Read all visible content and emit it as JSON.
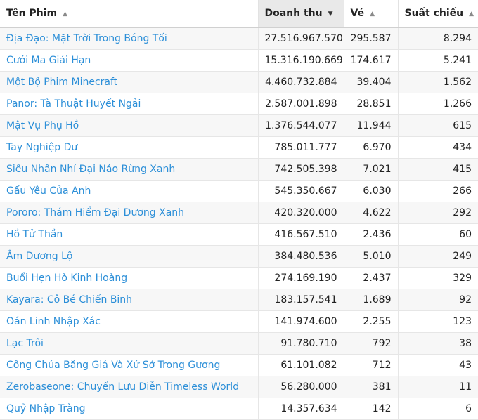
{
  "columns": [
    {
      "label": "Tên Phim",
      "arrow": "▲"
    },
    {
      "label": "Doanh thu",
      "arrow": "▼"
    },
    {
      "label": "Vé",
      "arrow": "▲"
    },
    {
      "label": "Suất chiếu",
      "arrow": "▲"
    }
  ],
  "rows": [
    {
      "title": "Địa Đạo: Mặt Trời Trong Bóng Tối",
      "revenue": "27.516.967.570",
      "tickets": "295.587",
      "showings": "8.294"
    },
    {
      "title": "Cưới Ma Giải Hạn",
      "revenue": "15.316.190.669",
      "tickets": "174.617",
      "showings": "5.241"
    },
    {
      "title": "Một Bộ Phim Minecraft",
      "revenue": "4.460.732.884",
      "tickets": "39.404",
      "showings": "1.562"
    },
    {
      "title": "Panor: Tà Thuật Huyết Ngải",
      "revenue": "2.587.001.898",
      "tickets": "28.851",
      "showings": "1.266"
    },
    {
      "title": "Mật Vụ Phụ Hồ",
      "revenue": "1.376.544.077",
      "tickets": "11.944",
      "showings": "615"
    },
    {
      "title": "Tay Nghiệp Dư",
      "revenue": "785.011.777",
      "tickets": "6.970",
      "showings": "434"
    },
    {
      "title": "Siêu Nhân Nhí Đại Náo Rừng Xanh",
      "revenue": "742.505.398",
      "tickets": "7.021",
      "showings": "415"
    },
    {
      "title": "Gấu Yêu Của Anh",
      "revenue": "545.350.667",
      "tickets": "6.030",
      "showings": "266"
    },
    {
      "title": "Pororo: Thám Hiểm Đại Dương Xanh",
      "revenue": "420.320.000",
      "tickets": "4.622",
      "showings": "292"
    },
    {
      "title": "Hồ Tử Thần",
      "revenue": "416.567.510",
      "tickets": "2.436",
      "showings": "60"
    },
    {
      "title": "Âm Dương Lộ",
      "revenue": "384.480.536",
      "tickets": "5.010",
      "showings": "249"
    },
    {
      "title": "Buổi Hẹn Hò Kinh Hoàng",
      "revenue": "274.169.190",
      "tickets": "2.437",
      "showings": "329"
    },
    {
      "title": "Kayara: Cô Bé Chiến Binh",
      "revenue": "183.157.541",
      "tickets": "1.689",
      "showings": "92"
    },
    {
      "title": "Oán Linh Nhập Xác",
      "revenue": "141.974.600",
      "tickets": "2.255",
      "showings": "123"
    },
    {
      "title": "Lạc Trôi",
      "revenue": "91.780.710",
      "tickets": "792",
      "showings": "38"
    },
    {
      "title": "Công Chúa Băng Giá Và Xứ Sở Trong Gương",
      "revenue": "61.101.082",
      "tickets": "712",
      "showings": "43"
    },
    {
      "title": "Zerobaseone: Chuyến Lưu Diễn Timeless World",
      "revenue": "56.280.000",
      "tickets": "381",
      "showings": "11"
    },
    {
      "title": "Quỷ Nhập Tràng",
      "revenue": "14.357.634",
      "tickets": "142",
      "showings": "6"
    }
  ]
}
